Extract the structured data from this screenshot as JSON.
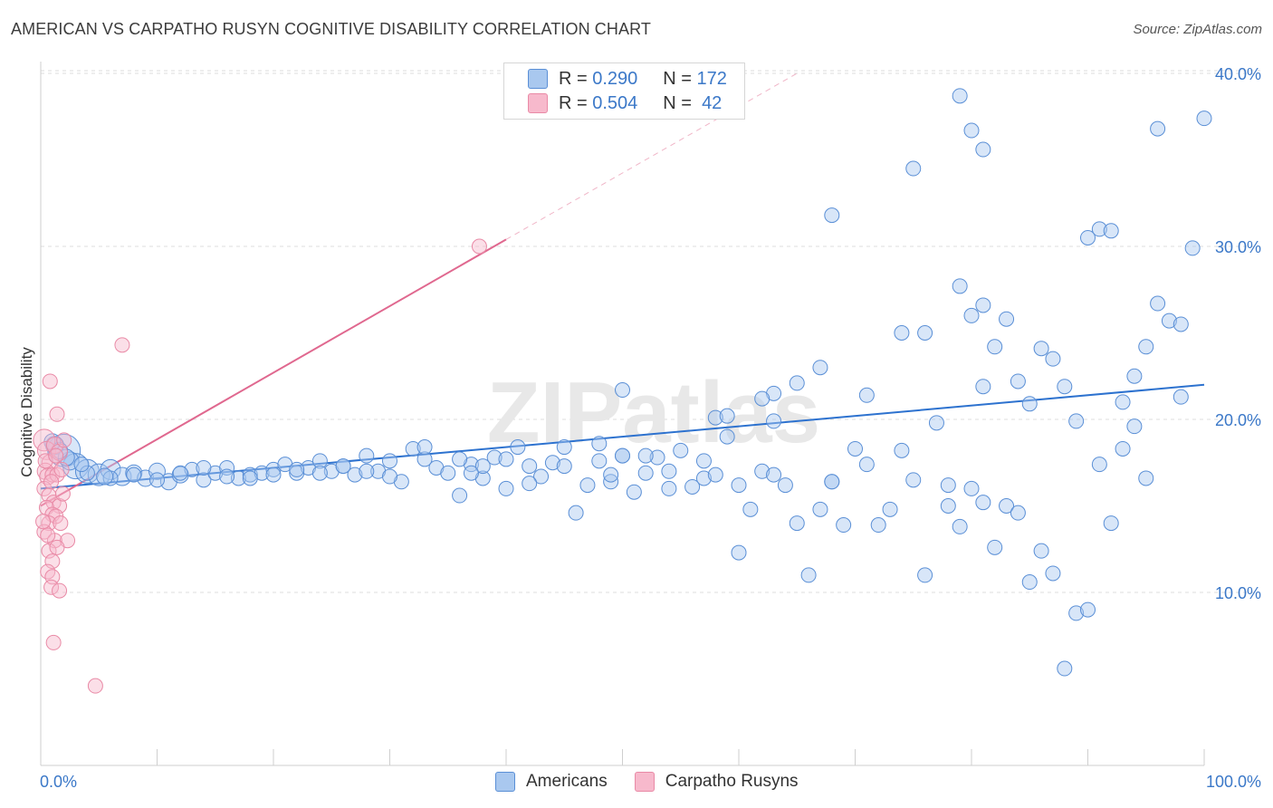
{
  "title": "AMERICAN VS CARPATHO RUSYN COGNITIVE DISABILITY CORRELATION CHART",
  "source": "Source: ZipAtlas.com",
  "watermark": "ZIPatlas",
  "legend": {
    "rows": [
      {
        "r_label": "R =",
        "r_value": "0.290",
        "n_label": "N =",
        "n_value": "172"
      },
      {
        "r_label": "R =",
        "r_value": "0.504",
        "n_label": "N =",
        "n_value": "42"
      }
    ]
  },
  "bottom_legend": {
    "americans": "Americans",
    "rusyns": "Carpatho Rusyns"
  },
  "colors": {
    "blue_fill": "#a9c8ef",
    "blue_stroke": "#5a8fd6",
    "blue_line": "#2d72cf",
    "pink_fill": "#f7b9cc",
    "pink_stroke": "#e98aa6",
    "pink_line": "#e0688f",
    "axis_label": "#3b78c8"
  },
  "chart_data": {
    "type": "scatter",
    "title": "AMERICAN VS CARPATHO RUSYN COGNITIVE DISABILITY CORRELATION CHART",
    "xlabel": "",
    "ylabel": "Cognitive Disability",
    "xlim": [
      0,
      100
    ],
    "ylim": [
      0,
      40
    ],
    "x_tick_labels": [
      "0.0%",
      "100.0%"
    ],
    "y_ticks": [
      10,
      20,
      30,
      40
    ],
    "y_tick_labels": [
      "10.0%",
      "20.0%",
      "30.0%",
      "40.0%"
    ],
    "grid": "horizontal dashed",
    "legend_placement": "top-center",
    "series": [
      {
        "name": "Americans",
        "r": 0.29,
        "n": 172,
        "trend": {
          "x": [
            0,
            100
          ],
          "y": [
            16.0,
            22.0
          ]
        },
        "points": [
          [
            2.0,
            18.2,
            18
          ],
          [
            3.0,
            17.3,
            14
          ],
          [
            4.0,
            17.0,
            13
          ],
          [
            5.0,
            16.8,
            12
          ],
          [
            6.0,
            17.1,
            11
          ],
          [
            7.0,
            16.7,
            10
          ],
          [
            1.2,
            18.5,
            10
          ],
          [
            2.5,
            17.6,
            10
          ],
          [
            8.0,
            16.9,
            9
          ],
          [
            9.0,
            16.6,
            9
          ],
          [
            10.0,
            17.0,
            9
          ],
          [
            11.0,
            16.4,
            9
          ],
          [
            12.0,
            16.8,
            9
          ],
          [
            13.0,
            17.1,
            8
          ],
          [
            14.0,
            16.5,
            8
          ],
          [
            15.0,
            16.9,
            8
          ],
          [
            16.0,
            17.2,
            8
          ],
          [
            17.0,
            16.6,
            8
          ],
          [
            18.0,
            16.8,
            8
          ],
          [
            19.0,
            16.9,
            8
          ],
          [
            20.0,
            17.1,
            8
          ],
          [
            21.0,
            17.4,
            8
          ],
          [
            22.0,
            16.9,
            8
          ],
          [
            23.0,
            17.2,
            8
          ],
          [
            24.0,
            17.6,
            8
          ],
          [
            25.0,
            17.0,
            8
          ],
          [
            26.0,
            17.3,
            8
          ],
          [
            27.0,
            16.8,
            8
          ],
          [
            28.0,
            17.9,
            8
          ],
          [
            29.0,
            17.0,
            8
          ],
          [
            30.0,
            17.6,
            8
          ],
          [
            31.0,
            16.4,
            8
          ],
          [
            32.0,
            18.3,
            8
          ],
          [
            33.0,
            17.7,
            8
          ],
          [
            34.0,
            17.2,
            8
          ],
          [
            35.0,
            16.9,
            8
          ],
          [
            36.0,
            15.6,
            8
          ],
          [
            37.0,
            17.4,
            8
          ],
          [
            38.0,
            16.6,
            8
          ],
          [
            39.0,
            17.8,
            8
          ],
          [
            40.0,
            16.0,
            8
          ],
          [
            41.0,
            18.4,
            8
          ],
          [
            42.0,
            17.3,
            8
          ],
          [
            43.0,
            16.7,
            8
          ],
          [
            44.0,
            17.5,
            8
          ],
          [
            45.0,
            18.4,
            8
          ],
          [
            46.0,
            14.6,
            8
          ],
          [
            47.0,
            16.2,
            8
          ],
          [
            48.0,
            17.6,
            8
          ],
          [
            49.0,
            16.4,
            8
          ],
          [
            50.0,
            17.9,
            8
          ],
          [
            51.0,
            15.8,
            8
          ],
          [
            52.0,
            16.9,
            8
          ],
          [
            53.0,
            17.8,
            8
          ],
          [
            54.0,
            17.0,
            8
          ],
          [
            55.0,
            18.2,
            8
          ],
          [
            56.0,
            16.1,
            8
          ],
          [
            57.0,
            16.6,
            8
          ],
          [
            58.0,
            20.1,
            8
          ],
          [
            59.0,
            19.0,
            8
          ],
          [
            60.0,
            12.3,
            8
          ],
          [
            61.0,
            14.8,
            8
          ],
          [
            62.0,
            17.0,
            8
          ],
          [
            63.0,
            21.5,
            8
          ],
          [
            64.0,
            16.2,
            8
          ],
          [
            65.0,
            14.0,
            8
          ],
          [
            66.0,
            11.0,
            8
          ],
          [
            67.0,
            14.8,
            8
          ],
          [
            68.0,
            16.4,
            8
          ],
          [
            69.0,
            13.9,
            8
          ],
          [
            70.0,
            18.3,
            8
          ],
          [
            71.0,
            17.4,
            8
          ],
          [
            72.0,
            13.9,
            8
          ],
          [
            73.0,
            14.8,
            8
          ],
          [
            74.0,
            18.2,
            8
          ],
          [
            75.0,
            16.5,
            8
          ],
          [
            76.0,
            11.0,
            8
          ],
          [
            77.0,
            19.8,
            8
          ],
          [
            78.0,
            15.0,
            8
          ],
          [
            79.0,
            13.8,
            8
          ],
          [
            80.0,
            16.0,
            8
          ],
          [
            81.0,
            15.2,
            8
          ],
          [
            82.0,
            12.6,
            8
          ],
          [
            83.0,
            15.0,
            8
          ],
          [
            84.0,
            14.6,
            8
          ],
          [
            85.0,
            10.6,
            8
          ],
          [
            86.0,
            12.4,
            8
          ],
          [
            87.0,
            11.1,
            8
          ],
          [
            88.0,
            5.6,
            8
          ],
          [
            89.0,
            8.8,
            8
          ],
          [
            90.0,
            9.0,
            8
          ],
          [
            91.0,
            17.4,
            8
          ],
          [
            92.0,
            14.0,
            8
          ],
          [
            93.0,
            18.3,
            8
          ],
          [
            94.0,
            19.6,
            8
          ],
          [
            95.0,
            16.6,
            8
          ],
          [
            33.0,
            18.4,
            8
          ],
          [
            36.0,
            17.7,
            8
          ],
          [
            48.0,
            18.6,
            8
          ],
          [
            50.0,
            21.7,
            8
          ],
          [
            57.0,
            17.6,
            8
          ],
          [
            59.0,
            20.2,
            8
          ],
          [
            62.0,
            21.2,
            8
          ],
          [
            63.0,
            19.9,
            8
          ],
          [
            63.0,
            16.8,
            8
          ],
          [
            65.0,
            22.1,
            8
          ],
          [
            67.0,
            23.0,
            8
          ],
          [
            68.0,
            16.4,
            8
          ],
          [
            71.0,
            21.4,
            8
          ],
          [
            74.0,
            25.0,
            8
          ],
          [
            76.0,
            25.0,
            8
          ],
          [
            78.0,
            16.2,
            8
          ],
          [
            80.0,
            26.0,
            8
          ],
          [
            81.0,
            21.9,
            8
          ],
          [
            82.0,
            24.2,
            8
          ],
          [
            83.0,
            25.8,
            8
          ],
          [
            84.0,
            22.2,
            8
          ],
          [
            85.0,
            20.9,
            8
          ],
          [
            86.0,
            24.1,
            8
          ],
          [
            87.0,
            23.5,
            8
          ],
          [
            88.0,
            21.9,
            8
          ],
          [
            89.0,
            19.9,
            8
          ],
          [
            90.0,
            30.5,
            8
          ],
          [
            91.0,
            31.0,
            8
          ],
          [
            92.0,
            30.9,
            8
          ],
          [
            93.0,
            21.0,
            8
          ],
          [
            94.0,
            22.5,
            8
          ],
          [
            95.0,
            24.2,
            8
          ],
          [
            96.0,
            26.7,
            8
          ],
          [
            97.0,
            25.7,
            8
          ],
          [
            98.0,
            21.3,
            8
          ],
          [
            99.0,
            29.9,
            8
          ],
          [
            98.0,
            25.5,
            8
          ],
          [
            68.0,
            31.8,
            8
          ],
          [
            75.0,
            34.5,
            8
          ],
          [
            79.0,
            27.7,
            8
          ],
          [
            81.0,
            26.6,
            8
          ],
          [
            79.0,
            38.7,
            8
          ],
          [
            80.0,
            36.7,
            8
          ],
          [
            81.0,
            35.6,
            8
          ],
          [
            96.0,
            36.8,
            8
          ],
          [
            100.0,
            37.4,
            8
          ],
          [
            49.0,
            16.8,
            8
          ],
          [
            50.0,
            17.9,
            8
          ],
          [
            52.0,
            17.9,
            8
          ],
          [
            54.0,
            16.0,
            8
          ],
          [
            58.0,
            16.8,
            8
          ],
          [
            60.0,
            16.2,
            8
          ],
          [
            45.0,
            17.3,
            8
          ],
          [
            42.0,
            16.3,
            8
          ],
          [
            40.0,
            17.7,
            8
          ],
          [
            38.0,
            17.3,
            8
          ],
          [
            37.0,
            16.9,
            8
          ],
          [
            30.0,
            16.7,
            8
          ],
          [
            28.0,
            17.0,
            8
          ],
          [
            26.0,
            17.3,
            8
          ],
          [
            24.0,
            16.9,
            8
          ],
          [
            22.0,
            17.1,
            8
          ],
          [
            20.0,
            16.8,
            8
          ],
          [
            18.0,
            16.6,
            8
          ],
          [
            16.0,
            16.7,
            8
          ],
          [
            14.0,
            17.2,
            8
          ],
          [
            12.0,
            16.9,
            8
          ],
          [
            10.0,
            16.5,
            8
          ],
          [
            8.0,
            16.8,
            8
          ],
          [
            6.0,
            16.6,
            8
          ],
          [
            4.0,
            16.9,
            8
          ],
          [
            3.5,
            17.4,
            8
          ],
          [
            2.2,
            17.8,
            9
          ],
          [
            1.6,
            18.2,
            9
          ],
          [
            1.0,
            18.7,
            9
          ],
          [
            5.5,
            16.7,
            9
          ]
        ]
      },
      {
        "name": "Carpatho Rusyns",
        "r": 0.504,
        "n": 42,
        "trend": {
          "x": [
            0,
            40
          ],
          "y": [
            15.0,
            30.4
          ]
        },
        "trend_dashed_extension": {
          "x": [
            40,
            65
          ],
          "y": [
            30.4,
            40.0
          ]
        },
        "points": [
          [
            0.3,
            18.8,
            12
          ],
          [
            0.5,
            18.2,
            10
          ],
          [
            0.8,
            17.5,
            9
          ],
          [
            1.2,
            18.5,
            9
          ],
          [
            1.6,
            18.1,
            9
          ],
          [
            2.0,
            18.8,
            8
          ],
          [
            0.4,
            17.0,
            9
          ],
          [
            0.6,
            16.7,
            9
          ],
          [
            1.0,
            16.8,
            8
          ],
          [
            1.4,
            16.8,
            8
          ],
          [
            0.3,
            16.0,
            8
          ],
          [
            0.7,
            15.6,
            8
          ],
          [
            1.1,
            15.2,
            8
          ],
          [
            1.6,
            15.0,
            8
          ],
          [
            0.5,
            14.9,
            8
          ],
          [
            1.0,
            14.5,
            8
          ],
          [
            1.3,
            14.4,
            8
          ],
          [
            0.7,
            14.0,
            8
          ],
          [
            1.7,
            14.0,
            8
          ],
          [
            0.3,
            13.5,
            8
          ],
          [
            1.2,
            13.0,
            8
          ],
          [
            2.3,
            13.0,
            8
          ],
          [
            0.7,
            12.4,
            8
          ],
          [
            1.4,
            12.6,
            8
          ],
          [
            1.0,
            11.8,
            8
          ],
          [
            0.6,
            11.2,
            8
          ],
          [
            1.0,
            10.9,
            8
          ],
          [
            0.9,
            10.3,
            8
          ],
          [
            1.6,
            10.1,
            8
          ],
          [
            0.8,
            22.2,
            8
          ],
          [
            1.4,
            20.3,
            8
          ],
          [
            7.0,
            24.3,
            8
          ],
          [
            37.7,
            30.0,
            8
          ],
          [
            1.1,
            7.1,
            8
          ],
          [
            4.7,
            4.6,
            8
          ],
          [
            0.4,
            17.6,
            8
          ],
          [
            0.9,
            16.4,
            8
          ],
          [
            1.3,
            17.9,
            8
          ],
          [
            1.8,
            17.1,
            8
          ],
          [
            0.2,
            14.1,
            8
          ],
          [
            0.6,
            13.3,
            8
          ],
          [
            1.9,
            15.7,
            8
          ]
        ]
      }
    ]
  }
}
